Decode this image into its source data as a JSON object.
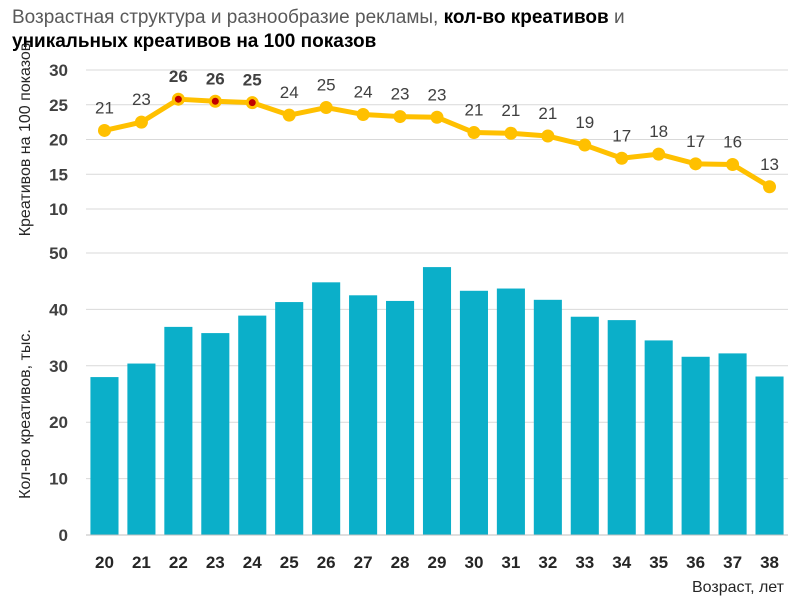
{
  "title": {
    "part1": "Возрастная структура и разнообразие рекламы, ",
    "part2": "кол-во креативов",
    "part3": " и",
    "part4": "уникальных креативов на 100 показов"
  },
  "colors": {
    "line": "#FFC000",
    "bar": "#0BAFC9",
    "highlight_marker": "#C00000",
    "grid": "#D9D9D9",
    "text": "#404040"
  },
  "chart_data": [
    {
      "type": "line",
      "ylabel": "Креативов на 100 показов",
      "ylim": [
        10,
        30
      ],
      "yticks": [
        10,
        15,
        20,
        25,
        30
      ],
      "grid": true,
      "x": [
        20,
        21,
        22,
        23,
        24,
        25,
        26,
        27,
        28,
        29,
        30,
        31,
        32,
        33,
        34,
        35,
        36,
        37,
        38
      ],
      "values": [
        21.3,
        22.5,
        25.8,
        25.5,
        25.3,
        23.5,
        24.6,
        23.6,
        23.3,
        23.2,
        21.0,
        20.9,
        20.5,
        19.2,
        17.3,
        17.9,
        16.5,
        16.4,
        13.2
      ],
      "data_labels": [
        "21",
        "23",
        "26",
        "26",
        "25",
        "24",
        "25",
        "24",
        "23",
        "23",
        "21",
        "21",
        "21",
        "19",
        "17",
        "18",
        "17",
        "16",
        "13"
      ],
      "highlighted_points": [
        22,
        23,
        24
      ]
    },
    {
      "type": "bar",
      "ylabel": "Кол-во креативов, тыс.",
      "xlabel": "Возраст, лет",
      "ylim": [
        0,
        50
      ],
      "yticks": [
        0,
        10,
        20,
        30,
        40,
        50
      ],
      "grid": true,
      "categories": [
        "20",
        "21",
        "22",
        "23",
        "24",
        "25",
        "26",
        "27",
        "28",
        "29",
        "30",
        "31",
        "32",
        "33",
        "34",
        "35",
        "36",
        "37",
        "38"
      ],
      "values": [
        28,
        30.4,
        36.9,
        35.8,
        38.9,
        41.3,
        44.8,
        42.5,
        41.5,
        47.5,
        43.3,
        43.7,
        41.7,
        38.7,
        38.1,
        34.5,
        31.6,
        32.2,
        28.1
      ]
    }
  ]
}
